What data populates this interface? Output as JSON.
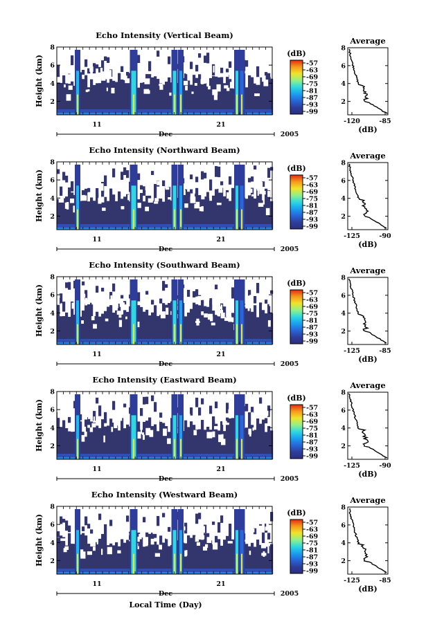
{
  "figure": {
    "xlabel": "Local Time (Day)",
    "date_month": "Dec",
    "date_year": "2005",
    "x_tick_labels": [
      "11",
      "21"
    ]
  },
  "chart_data": [
    {
      "type": "heatmap",
      "title": "Echo Intensity (Vertical Beam)",
      "ylabel": "Height (km)",
      "y_ticks": [
        "2",
        "4",
        "6",
        "8"
      ],
      "ylim": [
        0.5,
        8
      ],
      "x_ticks": [
        "11",
        "21"
      ],
      "colorbar": {
        "label": "(dB)",
        "ticks": [
          "-57",
          "-63",
          "-69",
          "-75",
          "-81",
          "-87",
          "-93",
          "-99"
        ]
      },
      "average_panel": {
        "title": "Average",
        "xlabel": "(dB)",
        "x_ticks": [
          "-120",
          "-85"
        ],
        "xlim": [
          -120,
          -85
        ],
        "y_ticks": [
          "2",
          "4",
          "6",
          "8"
        ]
      }
    },
    {
      "type": "heatmap",
      "title": "Echo Intensity (Northward Beam)",
      "ylabel": "Height (km)",
      "y_ticks": [
        "2",
        "4",
        "6",
        "8"
      ],
      "ylim": [
        0.5,
        8
      ],
      "x_ticks": [
        "11",
        "21"
      ],
      "colorbar": {
        "label": "(dB)",
        "ticks": [
          "-57",
          "-63",
          "-69",
          "-75",
          "-81",
          "-87",
          "-93",
          "-99"
        ]
      },
      "average_panel": {
        "title": "Average",
        "xlabel": "(dB)",
        "x_ticks": [
          "-125",
          "-90"
        ],
        "xlim": [
          -125,
          -90
        ],
        "y_ticks": [
          "2",
          "4",
          "6",
          "8"
        ]
      }
    },
    {
      "type": "heatmap",
      "title": "Echo Intensity (Southward Beam)",
      "ylabel": "Height (km)",
      "y_ticks": [
        "2",
        "4",
        "6",
        "8"
      ],
      "ylim": [
        0.5,
        8
      ],
      "x_ticks": [
        "11",
        "21"
      ],
      "colorbar": {
        "label": "(dB)",
        "ticks": [
          "-57",
          "-63",
          "-69",
          "-75",
          "-81",
          "-87",
          "-93",
          "-99"
        ]
      },
      "average_panel": {
        "title": "Average",
        "xlabel": "(dB)",
        "x_ticks": [
          "-125",
          "-85"
        ],
        "xlim": [
          -125,
          -85
        ],
        "y_ticks": [
          "2",
          "4",
          "6",
          "8"
        ]
      }
    },
    {
      "type": "heatmap",
      "title": "Echo Intensity (Eastward Beam)",
      "ylabel": "Height (km)",
      "y_ticks": [
        "2",
        "4",
        "6",
        "8"
      ],
      "ylim": [
        0.5,
        8
      ],
      "x_ticks": [
        "11",
        "21"
      ],
      "colorbar": {
        "label": "(dB)",
        "ticks": [
          "-57",
          "-63",
          "-69",
          "-75",
          "-81",
          "-87",
          "-93",
          "-99"
        ]
      },
      "average_panel": {
        "title": "Average",
        "xlabel": "(dB)",
        "x_ticks": [
          "-125",
          "-90"
        ],
        "xlim": [
          -125,
          -90
        ],
        "y_ticks": [
          "2",
          "4",
          "6",
          "8"
        ]
      }
    },
    {
      "type": "heatmap",
      "title": "Echo Intensity (Westward Beam)",
      "ylabel": "Height (km)",
      "y_ticks": [
        "2",
        "4",
        "6",
        "8"
      ],
      "ylim": [
        0.5,
        8
      ],
      "x_ticks": [
        "11",
        "21"
      ],
      "colorbar": {
        "label": "(dB)",
        "ticks": [
          "-57",
          "-63",
          "-69",
          "-75",
          "-81",
          "-87",
          "-93",
          "-99"
        ]
      },
      "average_panel": {
        "title": "Average",
        "xlabel": "(dB)",
        "x_ticks": [
          "-125",
          "-85"
        ],
        "xlim": [
          -125,
          -85
        ],
        "y_ticks": [
          "2",
          "4",
          "6",
          "8"
        ]
      }
    }
  ]
}
